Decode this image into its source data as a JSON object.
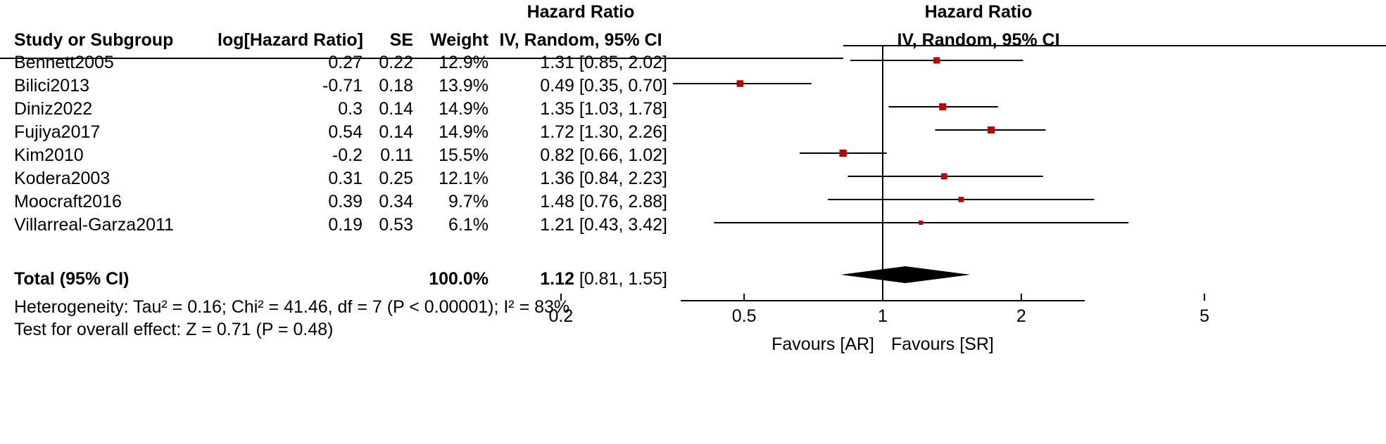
{
  "header": {
    "col_study": "Study or Subgroup",
    "col_log": "log[Hazard Ratio]",
    "col_se": "SE",
    "col_weight": "Weight",
    "col_hr_title": "Hazard Ratio",
    "col_hr_sub": "IV, Random, 95% CI",
    "plot_title": "Hazard Ratio",
    "plot_sub": "IV, Random, 95% CI"
  },
  "studies": [
    {
      "name": "Bennett2005",
      "log": "0.27",
      "se": "0.22",
      "weight": "12.9%",
      "ci_text": "1.31 [0.85, 2.02]"
    },
    {
      "name": "Bilici2013",
      "log": "-0.71",
      "se": "0.18",
      "weight": "13.9%",
      "ci_text": "0.49 [0.35, 0.70]"
    },
    {
      "name": "Diniz2022",
      "log": "0.3",
      "se": "0.14",
      "weight": "14.9%",
      "ci_text": "1.35 [1.03, 1.78]"
    },
    {
      "name": "Fujiya2017",
      "log": "0.54",
      "se": "0.14",
      "weight": "14.9%",
      "ci_text": "1.72 [1.30, 2.26]"
    },
    {
      "name": "Kim2010",
      "log": "-0.2",
      "se": "0.11",
      "weight": "15.5%",
      "ci_text": "0.82 [0.66, 1.02]"
    },
    {
      "name": "Kodera2003",
      "log": "0.31",
      "se": "0.25",
      "weight": "12.1%",
      "ci_text": "1.36 [0.84, 2.23]"
    },
    {
      "name": "Moocraft2016",
      "log": "0.39",
      "se": "0.34",
      "weight": "9.7%",
      "ci_text": "1.48 [0.76, 2.88]"
    },
    {
      "name": "Villarreal-Garza2011",
      "log": "0.19",
      "se": "0.53",
      "weight": "6.1%",
      "ci_text": "1.21 [0.43, 3.42]"
    }
  ],
  "total": {
    "label": "Total (95% CI)",
    "weight": "100.0%",
    "hr": "1.12",
    "ci": "[0.81, 1.55]"
  },
  "footer": {
    "heterogeneity": "Heterogeneity: Tau² = 0.16; Chi² = 41.46, df = 7 (P < 0.00001); I² = 83%",
    "overall": "Test for overall effect: Z = 0.71 (P = 0.48)"
  },
  "colors": {
    "marker": "#c00000",
    "line": "#000000"
  },
  "chart_data": {
    "type": "forest",
    "xscale": "log",
    "xlim": [
      0.2,
      5
    ],
    "xticks": [
      0.2,
      0.5,
      1,
      2,
      5
    ],
    "xtick_labels": [
      "0.2",
      "0.5",
      "1",
      "2",
      "5"
    ],
    "null_line": 1,
    "favours_left": "Favours [AR]",
    "favours_right": "Favours [SR]",
    "points": [
      {
        "hr": 1.31,
        "lo": 0.85,
        "hi": 2.02,
        "weight": 12.9
      },
      {
        "hr": 0.49,
        "lo": 0.35,
        "hi": 0.7,
        "weight": 13.9
      },
      {
        "hr": 1.35,
        "lo": 1.03,
        "hi": 1.78,
        "weight": 14.9
      },
      {
        "hr": 1.72,
        "lo": 1.3,
        "hi": 2.26,
        "weight": 14.9
      },
      {
        "hr": 0.82,
        "lo": 0.66,
        "hi": 1.02,
        "weight": 15.5
      },
      {
        "hr": 1.36,
        "lo": 0.84,
        "hi": 2.23,
        "weight": 12.1
      },
      {
        "hr": 1.48,
        "lo": 0.76,
        "hi": 2.88,
        "weight": 9.7
      },
      {
        "hr": 1.21,
        "lo": 0.43,
        "hi": 3.42,
        "weight": 6.1
      }
    ],
    "pooled": {
      "hr": 1.12,
      "lo": 0.81,
      "hi": 1.55
    }
  }
}
